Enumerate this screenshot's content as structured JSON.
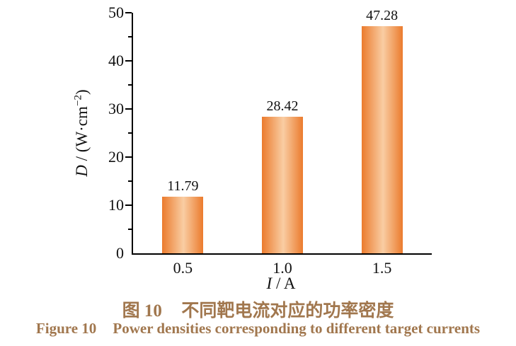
{
  "colors": {
    "bar_edge": "#eb7b2d",
    "bar_highlight": "#f9cda3",
    "axis": "#000000",
    "text": "#111111",
    "caption": "#a1774e"
  },
  "chart_data": {
    "type": "bar",
    "categories": [
      "0.5",
      "1.0",
      "1.5"
    ],
    "values": [
      11.79,
      28.42,
      47.28
    ],
    "value_labels": [
      "11.79",
      "28.42",
      "47.28"
    ],
    "title": "",
    "xlabel": {
      "variable": "I",
      "rest": " / A"
    },
    "ylabel": {
      "variable": "D",
      "unit_before_sup": " / (W·cm",
      "superscript": "−2",
      "unit_after_sup": ")"
    },
    "ylim": [
      0,
      50
    ],
    "y_major_ticks": [
      0,
      10,
      20,
      30,
      40,
      50
    ],
    "y_major_tick_labels": [
      "0",
      "10",
      "20",
      "30",
      "40",
      "50"
    ],
    "y_minor_ticks": [
      5,
      15,
      25,
      35,
      45
    ],
    "grid": false,
    "legend": "none",
    "bar_fill_style": "horizontal-cylinder-gradient"
  },
  "caption": {
    "cn_prefix": "图 10",
    "cn_text": "不同靶电流对应的功率密度",
    "en_prefix": "Figure 10",
    "en_text": "Power densities corresponding to different target currents"
  }
}
